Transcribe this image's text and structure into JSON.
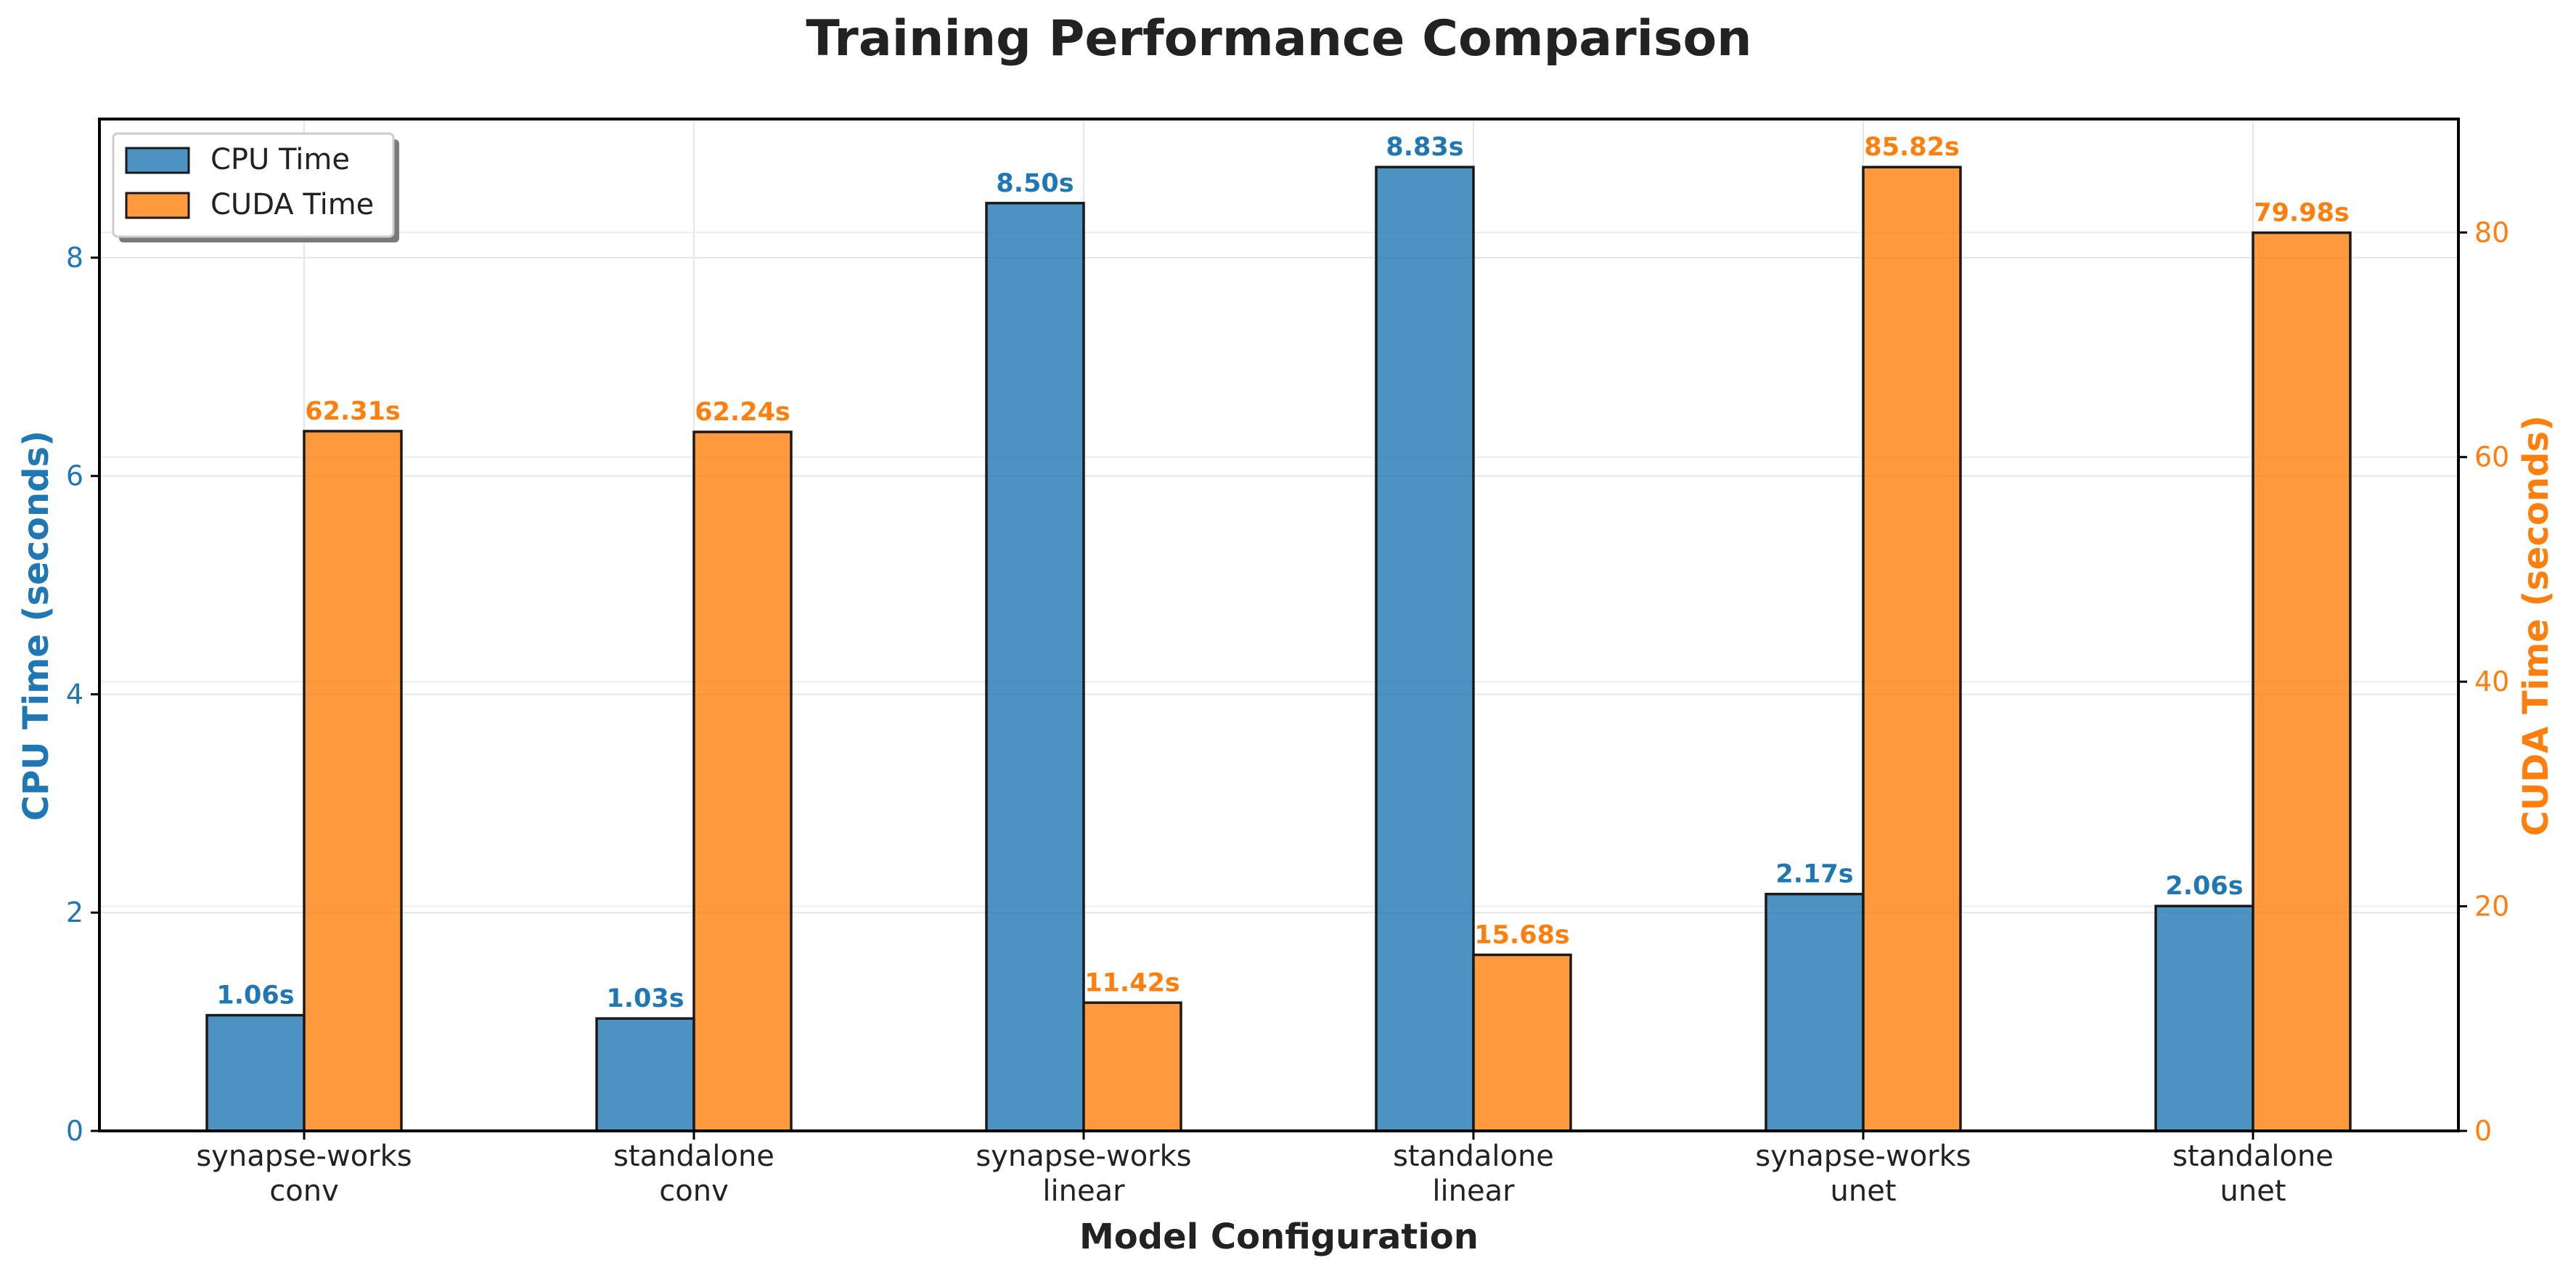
{
  "chart_data": {
    "type": "bar",
    "title": "Training Performance Comparison",
    "xlabel": "Model Configuration",
    "ylabel_left": "CPU Time (seconds)",
    "ylabel_right": "CUDA Time (seconds)",
    "categories": [
      [
        "synapse-works",
        "conv"
      ],
      [
        "standalone",
        "conv"
      ],
      [
        "synapse-works",
        "linear"
      ],
      [
        "standalone",
        "linear"
      ],
      [
        "synapse-works",
        "unet"
      ],
      [
        "standalone",
        "unet"
      ]
    ],
    "series": [
      {
        "name": "CPU Time",
        "axis": "left",
        "color": "#1f77b4",
        "values": [
          1.06,
          1.03,
          8.5,
          8.83,
          2.17,
          2.06
        ],
        "labels": [
          "1.06s",
          "1.03s",
          "8.50s",
          "8.83s",
          "2.17s",
          "2.06s"
        ]
      },
      {
        "name": "CUDA Time",
        "axis": "right",
        "color": "#ff7f0e",
        "values": [
          62.31,
          62.24,
          11.42,
          15.68,
          85.82,
          79.98
        ],
        "labels": [
          "62.31s",
          "62.24s",
          "11.42s",
          "15.68s",
          "85.82s",
          "79.98s"
        ]
      }
    ],
    "ylim_left": [
      0,
      9.27
    ],
    "ylim_right": [
      0,
      90.1
    ],
    "yticks_left": [
      0,
      2,
      4,
      6,
      8
    ],
    "yticks_right": [
      0,
      20,
      40,
      60,
      80
    ],
    "grid": true,
    "legend_position": "top-left"
  }
}
